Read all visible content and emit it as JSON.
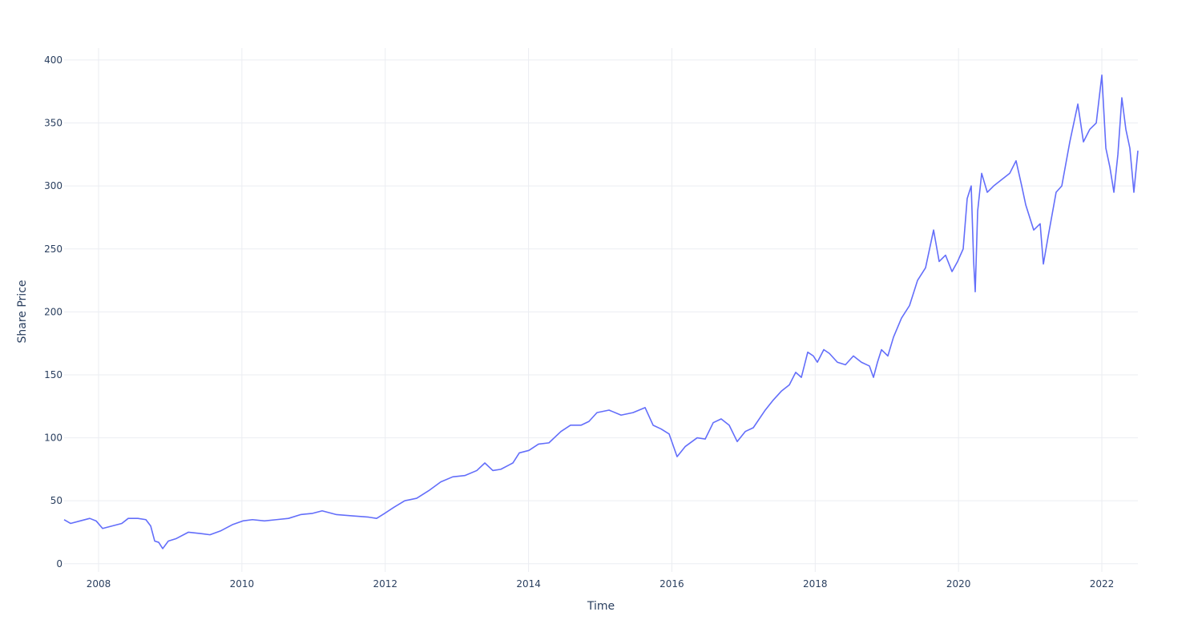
{
  "chart_data": {
    "type": "line",
    "x_label": "Time",
    "y_label": "Share Price",
    "color": "#636efa",
    "grid": true,
    "xlim": [
      2007.519,
      2022.503
    ],
    "xticks": [
      2008,
      2010,
      2012,
      2014,
      2016,
      2018,
      2020,
      2022
    ],
    "ylim": [
      -6.5,
      409.5
    ],
    "yticks": [
      0,
      50,
      100,
      150,
      200,
      250,
      300,
      350,
      400
    ],
    "x": [
      2007.519,
      2007.609,
      2007.743,
      2007.877,
      2007.966,
      2008.056,
      2008.19,
      2008.324,
      2008.414,
      2008.548,
      2008.66,
      2008.727,
      2008.783,
      2008.839,
      2008.895,
      2008.973,
      2009.085,
      2009.252,
      2009.42,
      2009.554,
      2009.7,
      2009.867,
      2010.013,
      2010.147,
      2010.315,
      2010.482,
      2010.65,
      2010.818,
      2010.986,
      2011.12,
      2011.321,
      2011.545,
      2011.768,
      2011.88,
      2011.992,
      2012.126,
      2012.272,
      2012.439,
      2012.607,
      2012.775,
      2012.942,
      2013.11,
      2013.278,
      2013.39,
      2013.502,
      2013.613,
      2013.781,
      2013.871,
      2014.005,
      2014.139,
      2014.284,
      2014.452,
      2014.586,
      2014.732,
      2014.843,
      2014.955,
      2015.123,
      2015.291,
      2015.458,
      2015.626,
      2015.738,
      2015.85,
      2015.962,
      2016.073,
      2016.185,
      2016.353,
      2016.465,
      2016.577,
      2016.688,
      2016.8,
      2016.912,
      2017.024,
      2017.136,
      2017.303,
      2017.415,
      2017.527,
      2017.639,
      2017.728,
      2017.807,
      2017.896,
      2017.974,
      2018.03,
      2018.12,
      2018.198,
      2018.31,
      2018.422,
      2018.533,
      2018.645,
      2018.757,
      2018.813,
      2018.869,
      2018.925,
      2019.014,
      2019.093,
      2019.204,
      2019.316,
      2019.428,
      2019.54,
      2019.652,
      2019.73,
      2019.819,
      2019.909,
      2019.987,
      2020.065,
      2020.121,
      2020.177,
      2020.211,
      2020.233,
      2020.267,
      2020.323,
      2020.401,
      2020.49,
      2020.602,
      2020.714,
      2020.803,
      2020.882,
      2020.938,
      2021.049,
      2021.139,
      2021.184,
      2021.251,
      2021.362,
      2021.441,
      2021.553,
      2021.665,
      2021.743,
      2021.832,
      2021.922,
      2022.0,
      2022.056,
      2022.112,
      2022.168,
      2022.224,
      2022.279,
      2022.335,
      2022.391,
      2022.447,
      2022.503
    ],
    "values": [
      35,
      32,
      34,
      36,
      34,
      28,
      30,
      32,
      36,
      36,
      35,
      30,
      18,
      17,
      12,
      18,
      20,
      25,
      24,
      23,
      26,
      31,
      34,
      35,
      34,
      35,
      36,
      39,
      40,
      42,
      39,
      38,
      37,
      36,
      40,
      45,
      50,
      52,
      58,
      65,
      69,
      70,
      74,
      80,
      74,
      75,
      80,
      88,
      90,
      95,
      96,
      105,
      110,
      110,
      113,
      120,
      122,
      118,
      120,
      124,
      110,
      107,
      103,
      85,
      93,
      100,
      99,
      112,
      115,
      110,
      97,
      105,
      108,
      122,
      130,
      137,
      142,
      152,
      148,
      168,
      165,
      160,
      170,
      167,
      160,
      158,
      165,
      160,
      157,
      148,
      160,
      170,
      165,
      180,
      195,
      205,
      225,
      235,
      265,
      240,
      245,
      232,
      240,
      250,
      290,
      300,
      240,
      216,
      280,
      310,
      295,
      300,
      305,
      310,
      320,
      300,
      285,
      265,
      270,
      238,
      260,
      295,
      300,
      335,
      365,
      335,
      345,
      350,
      388,
      330,
      315,
      295,
      325,
      370,
      345,
      330,
      295,
      328
    ]
  }
}
